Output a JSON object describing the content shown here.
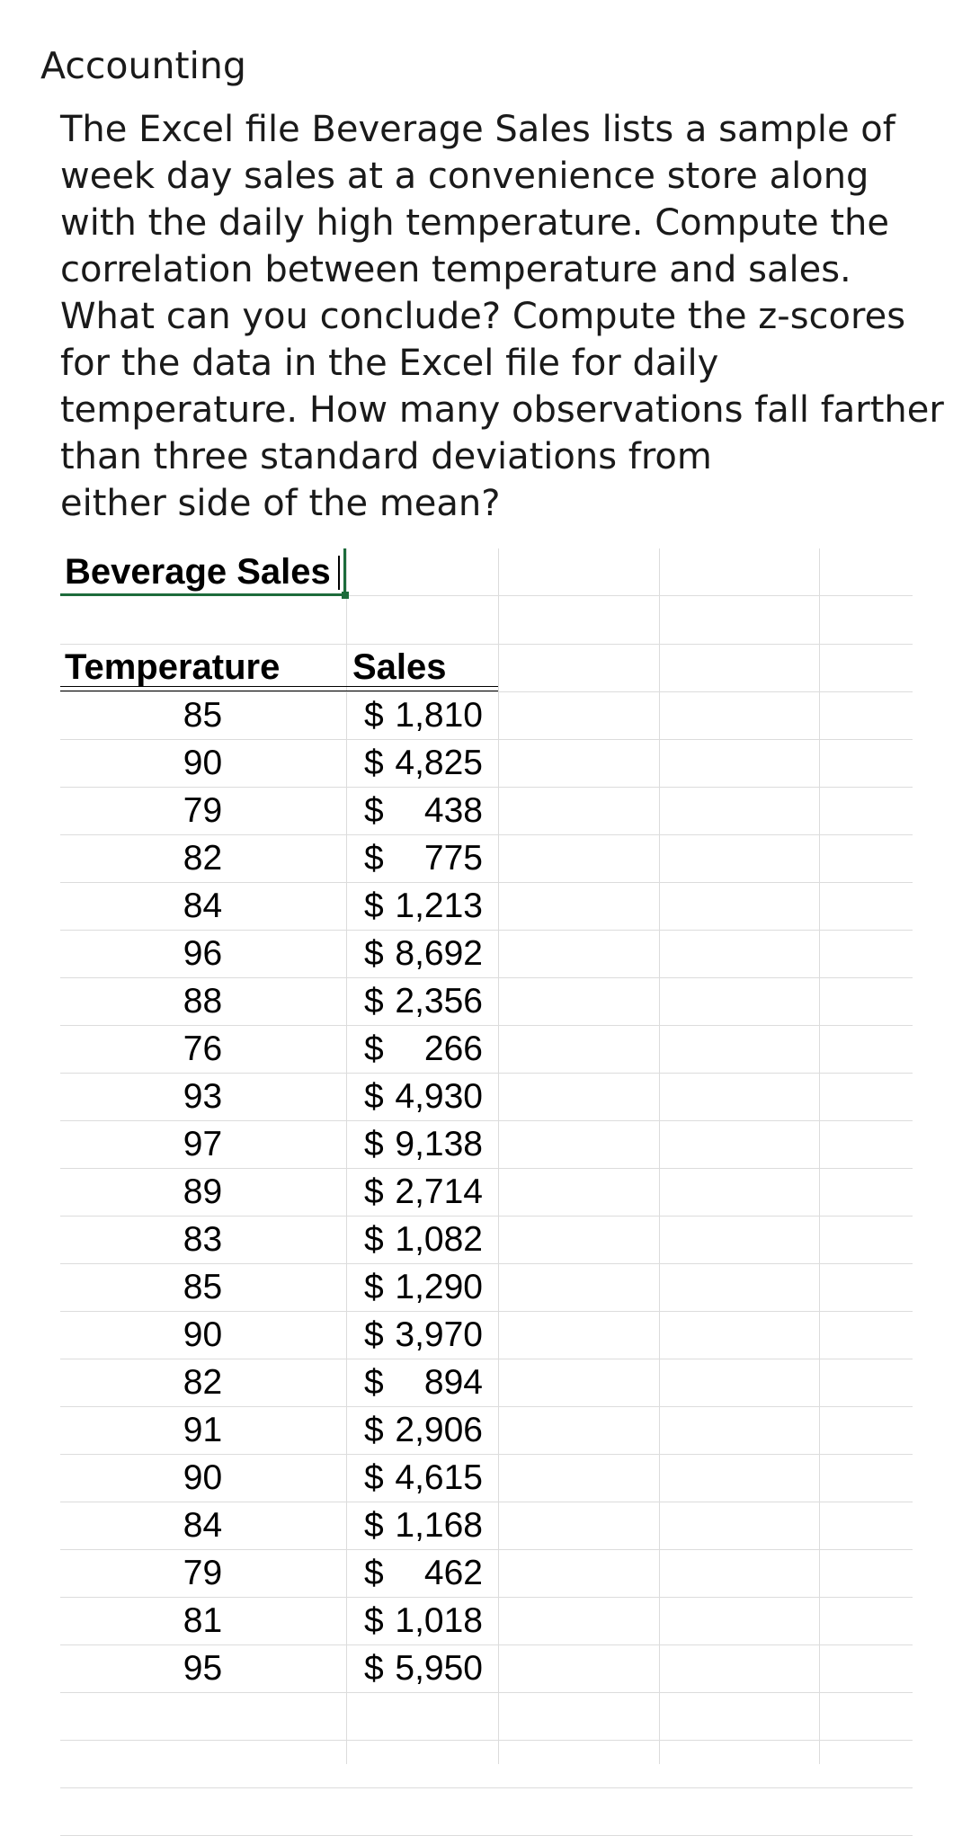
{
  "subject": "Accounting",
  "question_lines": [
    "The Excel file Beverage Sales lists a sample of",
    "week day sales at a convenience store along",
    "with the daily high temperature. Compute the",
    "correlation between temperature and sales.",
    "What can you conclude? Compute the z-scores",
    "for the data in the Excel file for daily",
    "temperature. How many observations fall farther",
    "than three standard deviations from",
    "either side of the mean?"
  ],
  "sheet": {
    "title": "Beverage Sales",
    "headers": {
      "temperature": "Temperature",
      "sales": "Sales"
    },
    "currency_symbol": "$",
    "rows": [
      {
        "temperature": "85",
        "sales": "1,810"
      },
      {
        "temperature": "90",
        "sales": "4,825"
      },
      {
        "temperature": "79",
        "sales": "438"
      },
      {
        "temperature": "82",
        "sales": "775"
      },
      {
        "temperature": "84",
        "sales": "1,213"
      },
      {
        "temperature": "96",
        "sales": "8,692"
      },
      {
        "temperature": "88",
        "sales": "2,356"
      },
      {
        "temperature": "76",
        "sales": "266"
      },
      {
        "temperature": "93",
        "sales": "4,930"
      },
      {
        "temperature": "97",
        "sales": "9,138"
      },
      {
        "temperature": "89",
        "sales": "2,714"
      },
      {
        "temperature": "83",
        "sales": "1,082"
      },
      {
        "temperature": "85",
        "sales": "1,290"
      },
      {
        "temperature": "90",
        "sales": "3,970"
      },
      {
        "temperature": "82",
        "sales": "894"
      },
      {
        "temperature": "91",
        "sales": "2,906"
      },
      {
        "temperature": "90",
        "sales": "4,615"
      },
      {
        "temperature": "84",
        "sales": "1,168"
      },
      {
        "temperature": "79",
        "sales": "462"
      },
      {
        "temperature": "81",
        "sales": "1,018"
      },
      {
        "temperature": "95",
        "sales": "5,950"
      }
    ],
    "accent_color": "#1d6b3b",
    "gridline_color": "#dcdcdc"
  }
}
